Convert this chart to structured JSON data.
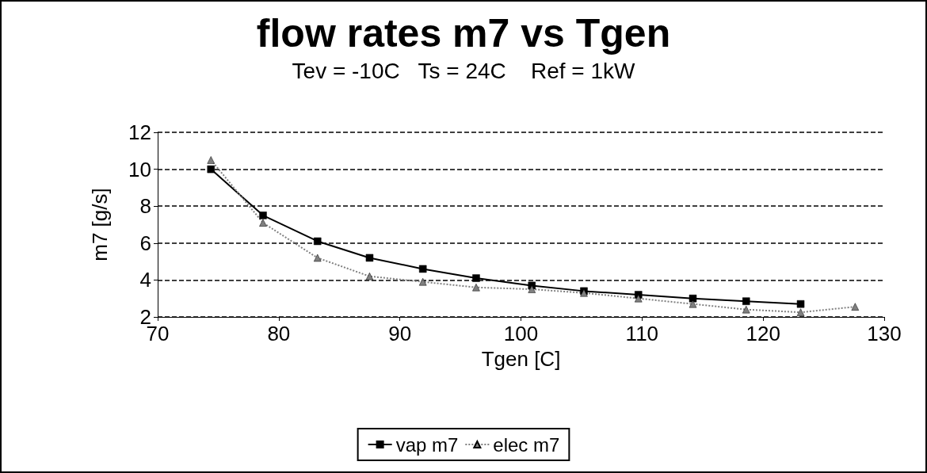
{
  "chart_data": {
    "type": "line",
    "title": "flow rates m7 vs Tgen",
    "subtitle": "Tev = -10C   Ts = 24C    Ref = 1kW",
    "xlabel": "Tgen [C]",
    "ylabel": "m7 [g/s]",
    "xlim": [
      70,
      130
    ],
    "xticks": [
      70,
      80,
      90,
      100,
      110,
      120,
      130
    ],
    "ylim": [
      2,
      12
    ],
    "yticks": [
      2,
      4,
      6,
      8,
      10,
      12
    ],
    "grid": "y",
    "legend": "bottom",
    "series": [
      {
        "name": "vap m7",
        "color": "#000000",
        "marker": "square",
        "line_style": "solid",
        "x": [
          74.4,
          78.7,
          83.2,
          87.5,
          91.9,
          96.3,
          100.9,
          105.2,
          109.7,
          114.2,
          118.6,
          123.1
        ],
        "values": [
          10,
          7.5,
          6.1,
          5.2,
          4.6,
          4.1,
          3.7,
          3.4,
          3.2,
          3.0,
          2.85,
          2.7
        ]
      },
      {
        "name": "elec m7",
        "color": "#808080",
        "marker": "triangle",
        "line_style": "dotted",
        "x": [
          74.4,
          78.7,
          83.2,
          87.5,
          91.9,
          96.3,
          100.9,
          105.2,
          109.7,
          114.2,
          118.6,
          123.1,
          127.6
        ],
        "values": [
          10.5,
          7.1,
          5.2,
          4.2,
          3.9,
          3.6,
          3.5,
          3.3,
          3.0,
          2.7,
          2.4,
          2.25,
          2.55
        ]
      }
    ]
  }
}
